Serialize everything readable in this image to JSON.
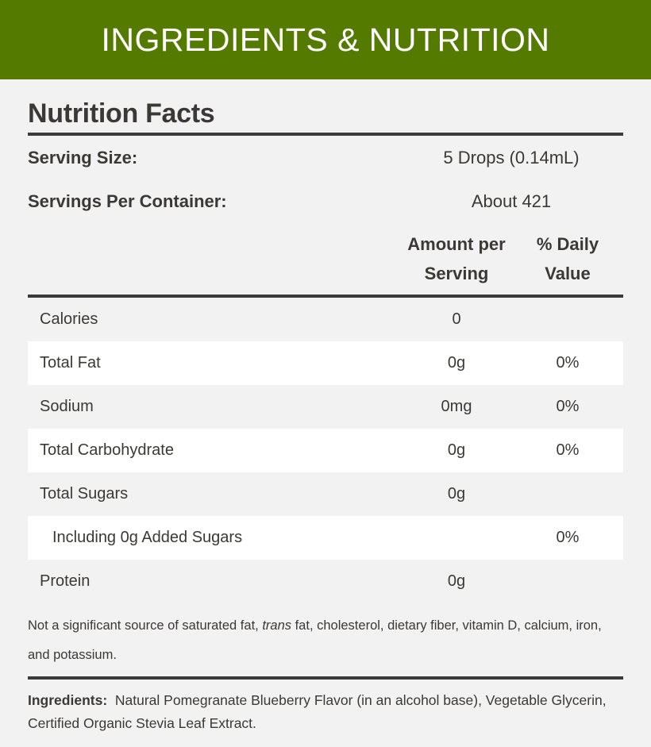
{
  "banner": {
    "title": "INGREDIENTS & NUTRITION",
    "color": "#557a00"
  },
  "nutrition": {
    "title": "Nutrition Facts",
    "serving_size": {
      "label": "Serving Size:",
      "value": "5 Drops (0.14mL)"
    },
    "servings_per_container": {
      "label": "Servings Per Container:",
      "value": "About 421"
    },
    "columns": {
      "amount": "Amount per Serving",
      "daily_value": "% Daily Value"
    },
    "rows": [
      {
        "name": "Calories",
        "amount": "0",
        "daily": ""
      },
      {
        "name": "Total Fat",
        "amount": "0g",
        "daily": "0%"
      },
      {
        "name": "Sodium",
        "amount": "0mg",
        "daily": "0%"
      },
      {
        "name": "Total Carbohydrate",
        "amount": "0g",
        "daily": "0%"
      },
      {
        "name": "Total Sugars",
        "amount": "0g",
        "daily": ""
      },
      {
        "name": "Including 0g Added Sugars",
        "amount": "",
        "daily": "0%"
      },
      {
        "name": "Protein",
        "amount": "0g",
        "daily": ""
      }
    ],
    "footnote": {
      "before": "Not a significant source of saturated fat, ",
      "italic": "trans",
      "after": " fat, cholesterol, dietary fiber, vitamin D, calcium, iron, and potassium."
    },
    "ingredients": {
      "label": "Ingredients:",
      "text": "Natural Pomegranate Blueberry Flavor (in an alcohol base), Vegetable Glycerin, Certified Organic Stevia Leaf Extract."
    }
  }
}
